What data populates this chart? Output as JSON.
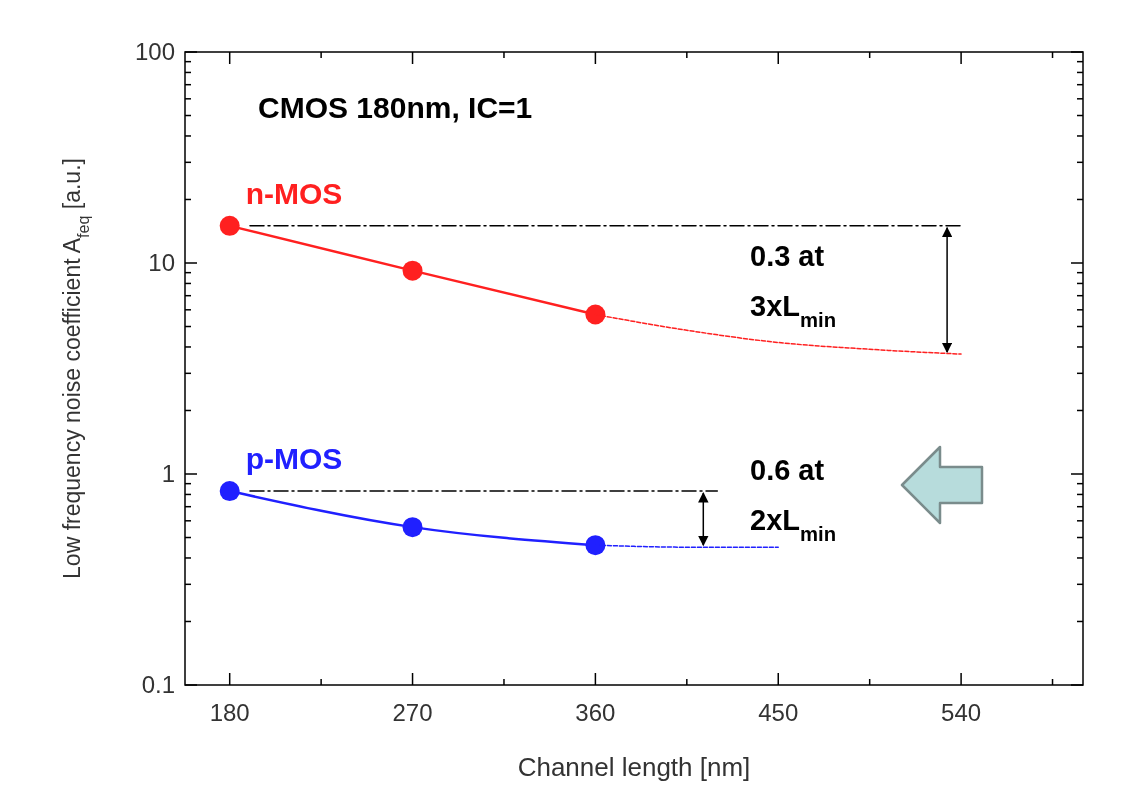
{
  "chart_data": {
    "type": "line",
    "title": "CMOS 180nm, IC=1",
    "xlabel": "Channel length [nm]",
    "ylabel": "Low frequency noise coefficient A$_{feq}$ [a.u.]",
    "log": "y",
    "grid": false,
    "xlim": [
      158,
      600
    ],
    "xticks": [
      180,
      {
        "value": 225,
        "label": null
      },
      270,
      {
        "value": 315,
        "label": null
      },
      360,
      {
        "value": 405,
        "label": null
      },
      450,
      {
        "value": 495,
        "label": null
      },
      540,
      {
        "value": 585,
        "label": null
      }
    ],
    "ylim": [
      0.1,
      100
    ],
    "yticks": [
      {
        "value": 0.1,
        "label": "0.1"
      },
      {
        "value": 0.2,
        "label": null
      },
      {
        "value": 0.3,
        "label": null
      },
      {
        "value": 0.4,
        "label": null
      },
      {
        "value": 0.5,
        "label": null
      },
      {
        "value": 0.6,
        "label": null
      },
      {
        "value": 0.7,
        "label": null
      },
      {
        "value": 0.8,
        "label": null
      },
      {
        "value": 0.9,
        "label": null
      },
      1,
      {
        "value": 2,
        "label": null
      },
      {
        "value": 3,
        "label": null
      },
      {
        "value": 4,
        "label": null
      },
      {
        "value": 5,
        "label": null
      },
      {
        "value": 6,
        "label": null
      },
      {
        "value": 7,
        "label": null
      },
      {
        "value": 8,
        "label": null
      },
      {
        "value": 9,
        "label": null
      },
      10,
      {
        "value": 20,
        "label": null
      },
      {
        "value": 30,
        "label": null
      },
      {
        "value": 40,
        "label": null
      },
      {
        "value": 50,
        "label": null
      },
      {
        "value": 60,
        "label": null
      },
      {
        "value": 70,
        "label": null
      },
      {
        "value": 80,
        "label": null
      },
      {
        "value": 90,
        "label": null
      },
      100
    ],
    "series": [
      {
        "name": "n-MOS",
        "color": "#ff2020",
        "x": [
          180,
          270,
          360
        ],
        "values": [
          15,
          9.2,
          5.7
        ],
        "marker": "circle",
        "line_style": "solid"
      },
      {
        "color": "#ff2020",
        "x": [
          360,
          405,
          450,
          495,
          540
        ],
        "values": [
          5.7,
          4.8,
          4.2,
          3.9,
          3.7
        ],
        "marker": "none",
        "line_style": "dotted"
      },
      {
        "name": "p-MOS",
        "color": "#2020ff",
        "x": [
          180,
          270,
          360
        ],
        "values": [
          0.83,
          0.56,
          0.46
        ],
        "marker": "circle",
        "line_style": "solid"
      },
      {
        "color": "#2020ff",
        "x": [
          360,
          405,
          450
        ],
        "values": [
          0.46,
          0.45,
          0.45
        ],
        "marker": "none",
        "line_style": "dotted"
      },
      {
        "color": "#000000",
        "x": [
          190,
          540
        ],
        "values": [
          15,
          15
        ],
        "marker": "none",
        "line_style": "dashed"
      },
      {
        "color": "#000000",
        "x": [
          190,
          420
        ],
        "values": [
          0.83,
          0.83
        ],
        "marker": "none",
        "line_style": "dashed"
      }
    ],
    "annotations": [
      "0.3 at 3xL$_{min}$",
      "0.6 at 2xL$_{min}$"
    ]
  }
}
